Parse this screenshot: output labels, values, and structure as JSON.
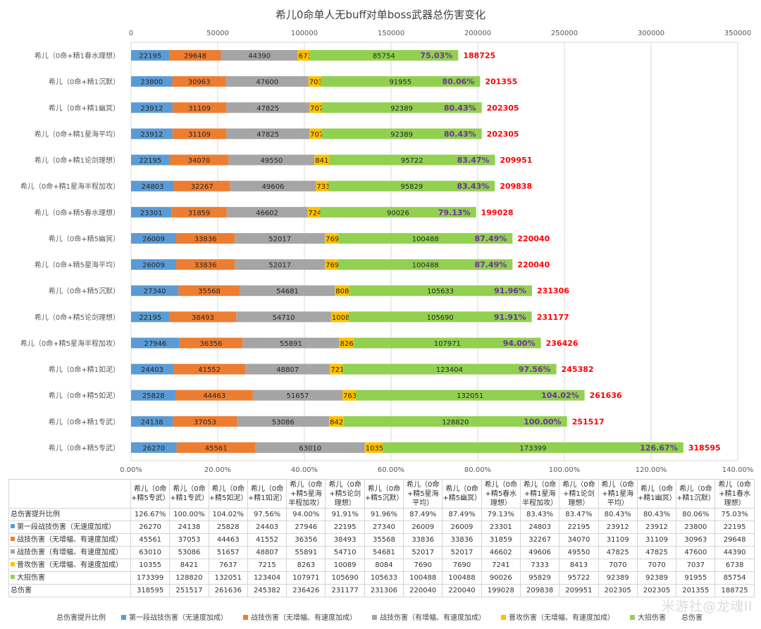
{
  "chart_data": {
    "type": "bar",
    "orientation": "horizontal",
    "stacked": true,
    "title": "希儿0命单人无buff对单boss武器总伤害变化",
    "top_axis": {
      "min": 0,
      "max": 350000,
      "step": 50000,
      "tick_labels": [
        "0",
        "50000",
        "100000",
        "150000",
        "200000",
        "250000",
        "300000",
        "350000"
      ]
    },
    "bottom_axis": {
      "min": 0,
      "max": 1.4,
      "step": 0.2,
      "tick_labels": [
        "0.00%",
        "20.00%",
        "40.00%",
        "60.00%",
        "80.00%",
        "100.00%",
        "120.00%",
        "140.00%"
      ]
    },
    "categories": [
      "希儿（0命+精1春水理想）",
      "希儿（0命+精1沉默）",
      "希儿（0命+精1幽冥）",
      "希儿（0命+精1星海平均）",
      "希儿（0命+精1论剑理想）",
      "希儿（0命+精1星海半程加攻）",
      "希儿（0命+精5春水理想）",
      "希儿（0命+精5幽冥）",
      "希儿（0命+精5星海平均）",
      "希儿（0命+精5沉默）",
      "希儿（0命+精5论剑理想）",
      "希儿（0命+精5星海半程加攻）",
      "希儿（0命+精1如泥）",
      "希儿（0命+精5如泥）",
      "希儿（0命+精1专武）",
      "希儿（0命+精5专武）"
    ],
    "series": [
      {
        "name": "第一段战技伤害（无速度加成）",
        "color": "#5b9bd5",
        "values": [
          22195,
          23800,
          23912,
          23912,
          22195,
          24803,
          23301,
          26009,
          26009,
          27340,
          22195,
          27946,
          24403,
          25828,
          24138,
          26270
        ]
      },
      {
        "name": "战技伤害（无增幅、有速度加成）",
        "color": "#ed7d31",
        "values": [
          29648,
          30963,
          31109,
          31109,
          34070,
          32267,
          31859,
          33836,
          33836,
          35568,
          38493,
          36356,
          41552,
          44463,
          37053,
          45561
        ]
      },
      {
        "name": "战技伤害（有增幅、有速度加成）",
        "color": "#a5a5a5",
        "values": [
          44390,
          47600,
          47825,
          47825,
          49550,
          49606,
          46602,
          52017,
          52017,
          54681,
          54710,
          55891,
          48807,
          51657,
          53086,
          63010
        ]
      },
      {
        "name": "普攻伤害（无增幅、有速度加成）",
        "color": "#ffc000",
        "values": [
          6738,
          7037,
          7070,
          7070,
          8413,
          7333,
          7241,
          7690,
          7690,
          8084,
          10089,
          8263,
          7215,
          7637,
          8421,
          10355
        ]
      },
      {
        "name": "大招伤害",
        "color": "#92d050",
        "values": [
          85754,
          91955,
          92389,
          92389,
          95722,
          95829,
          90026,
          100488,
          100488,
          105633,
          105690,
          107971,
          123404,
          132051,
          128820,
          173399
        ]
      }
    ],
    "totals_name": "总伤害",
    "totals": [
      188725,
      201355,
      202305,
      202305,
      209951,
      209838,
      199028,
      220040,
      220040,
      231306,
      231177,
      236426,
      245382,
      261636,
      251517,
      318595
    ],
    "ratio_name": "总伤害提升比例",
    "ratio_labels": [
      "75.03%",
      "80.06%",
      "80.43%",
      "80.43%",
      "83.47%",
      "83.43%",
      "79.13%",
      "87.49%",
      "87.49%",
      "91.96%",
      "91.91%",
      "94.00%",
      "97.56%",
      "104.02%",
      "100.00%",
      "126.67%"
    ],
    "ratio_values": [
      0.7503,
      0.8006,
      0.8043,
      0.8043,
      0.8347,
      0.8343,
      0.7913,
      0.8749,
      0.8749,
      0.9196,
      0.9191,
      0.94,
      0.9756,
      1.0402,
      1.0,
      1.2667
    ]
  },
  "table": {
    "headers": [
      "希儿（0命+精5专武）",
      "希儿（0命+精1专武）",
      "希儿（0命+精5如泥）",
      "希儿（0命+精1如泥）",
      "希儿（0命+精5星海半程加攻）",
      "希儿（0命+精5论剑理想）",
      "希儿（0命+精5沉默）",
      "希儿（0命+精5星海平均）",
      "希儿（0命+精5幽冥）",
      "希儿（0命+精5春水理想）",
      "希儿（0命+精1星海半程加攻）",
      "希儿（0命+精1论剑理想）",
      "希儿（0命+精1星海平均）",
      "希儿（0命+精1幽冥）",
      "希儿（0命+精1沉默）",
      "希儿（0命+精1春水理想）"
    ],
    "rows": [
      {
        "label": "总伤害提升比例",
        "marker": "",
        "cells": [
          "126.67%",
          "100.00%",
          "104.02%",
          "97.56%",
          "94.00%",
          "91.91%",
          "91.96%",
          "87.49%",
          "87.49%",
          "79.13%",
          "83.43%",
          "83.47%",
          "80.43%",
          "80.43%",
          "80.06%",
          "75.03%"
        ]
      },
      {
        "label": "第一段战技伤害（无速度加成）",
        "marker": "#5b9bd5",
        "cells": [
          "26270",
          "24138",
          "25828",
          "24403",
          "27946",
          "22195",
          "27340",
          "26009",
          "26009",
          "23301",
          "24803",
          "22195",
          "23912",
          "23912",
          "23800",
          "22195"
        ]
      },
      {
        "label": "战技伤害（无增幅、有速度加成）",
        "marker": "#ed7d31",
        "cells": [
          "45561",
          "37053",
          "44463",
          "41552",
          "36356",
          "38493",
          "35568",
          "33836",
          "33836",
          "31859",
          "32267",
          "34070",
          "31109",
          "31109",
          "30963",
          "29648"
        ]
      },
      {
        "label": "战技伤害（有增幅、有速度加成）",
        "marker": "#a5a5a5",
        "cells": [
          "63010",
          "53086",
          "51657",
          "48807",
          "55891",
          "54710",
          "54681",
          "52017",
          "52017",
          "46602",
          "49606",
          "49550",
          "47825",
          "47825",
          "47600",
          "44390"
        ]
      },
      {
        "label": "普攻伤害（无增幅、有速度加成）",
        "marker": "#ffc000",
        "cells": [
          "10355",
          "8421",
          "7637",
          "7215",
          "8263",
          "10089",
          "8084",
          "7690",
          "7690",
          "7241",
          "7333",
          "8413",
          "7070",
          "7070",
          "7037",
          "6738"
        ]
      },
      {
        "label": "大招伤害",
        "marker": "#92d050",
        "cells": [
          "173399",
          "128820",
          "132051",
          "123404",
          "107971",
          "105690",
          "105633",
          "100488",
          "100488",
          "90026",
          "95829",
          "95722",
          "92389",
          "92389",
          "91955",
          "85754"
        ]
      },
      {
        "label": "总伤害",
        "marker": "",
        "cells": [
          "318595",
          "251517",
          "261636",
          "245382",
          "236426",
          "231177",
          "231306",
          "220040",
          "220040",
          "199028",
          "209838",
          "209951",
          "202305",
          "202305",
          "201355",
          "188725"
        ]
      }
    ]
  },
  "legend": [
    {
      "label": "总伤害提升比例",
      "color": ""
    },
    {
      "label": "第一段战技伤害（无速度加成）",
      "color": "#5b9bd5"
    },
    {
      "label": "战技伤害（无增幅、有速度加成）",
      "color": "#ed7d31"
    },
    {
      "label": "战技伤害（有增幅、有速度加成）",
      "color": "#a5a5a5"
    },
    {
      "label": "普攻伤害（无增幅、有速度加成）",
      "color": "#ffc000"
    },
    {
      "label": "大招伤害",
      "color": "#92d050"
    },
    {
      "label": "总伤害",
      "color": ""
    }
  ],
  "watermark": "米游社@龙魂II",
  "colors": {
    "ratio_text": "#7030a0",
    "total_text": "#ff0000",
    "grid": "#d9d9d9"
  }
}
